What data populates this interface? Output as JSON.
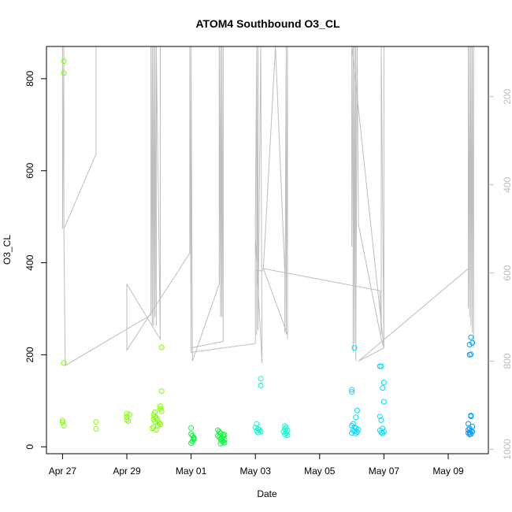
{
  "chart_data": {
    "type": "scatter",
    "title": "ATOM4 Southbound O3_CL",
    "xlabel": "Date",
    "ylabel": "O3_CL",
    "xlim": [
      "2018-04-26T12:00",
      "2018-05-10T06:00"
    ],
    "ylim": [
      -15,
      870
    ],
    "x_ticks": [
      {
        "date": "2018-04-27",
        "label": "Apr 27"
      },
      {
        "date": "2018-04-29",
        "label": "Apr 29"
      },
      {
        "date": "2018-05-01",
        "label": "May 01"
      },
      {
        "date": "2018-05-03",
        "label": "May 03"
      },
      {
        "date": "2018-05-05",
        "label": "May 05"
      },
      {
        "date": "2018-05-07",
        "label": "May 07"
      },
      {
        "date": "2018-05-09",
        "label": "May 09"
      }
    ],
    "y_ticks": [
      0,
      200,
      400,
      600,
      800
    ],
    "y2_ticks": [
      200,
      400,
      600,
      800,
      1000
    ],
    "y2_range": [
      86,
      1010
    ],
    "y2_reversed": true,
    "grid": false,
    "colors": {
      "points": [
        "#7fff00",
        "#00ff33",
        "#00ffcc",
        "#00ddff",
        "#0099ff"
      ],
      "profile_line": "#bebebe",
      "axis": "#000000",
      "secondary_axis": "#bdbdbd"
    },
    "series": [
      {
        "color": "#7fff00",
        "points": [
          [
            "2018-04-27T01:00",
            838
          ],
          [
            "2018-04-27T01:00",
            812
          ],
          [
            "2018-04-27T01:00",
            182
          ],
          [
            "2018-04-27T00:00",
            57
          ],
          [
            "2018-04-27T00:00",
            53
          ],
          [
            "2018-04-27T01:00",
            46
          ],
          [
            "2018-04-28T01:00",
            54
          ],
          [
            "2018-04-28T01:00",
            39
          ],
          [
            "2018-04-29T00:00",
            72
          ],
          [
            "2018-04-29T00:00",
            65
          ],
          [
            "2018-04-29T00:00",
            59
          ],
          [
            "2018-04-29T01:00",
            56
          ],
          [
            "2018-04-29T02:00",
            70
          ],
          [
            "2018-04-30T02:00",
            216
          ],
          [
            "2018-04-30T02:00",
            121
          ],
          [
            "2018-04-30T01:00",
            88
          ],
          [
            "2018-04-30T01:00",
            82
          ],
          [
            "2018-04-30T02:00",
            77
          ],
          [
            "2018-04-29T21:00",
            75
          ],
          [
            "2018-04-29T20:00",
            70
          ],
          [
            "2018-04-29T21:00",
            66
          ],
          [
            "2018-04-29T22:00",
            63
          ],
          [
            "2018-04-29T20:00",
            60
          ],
          [
            "2018-04-29T23:00",
            58
          ],
          [
            "2018-04-29T21:00",
            55
          ],
          [
            "2018-04-30T00:00",
            52
          ],
          [
            "2018-04-30T01:00",
            49
          ],
          [
            "2018-04-29T23:00",
            46
          ],
          [
            "2018-04-29T20:00",
            43
          ],
          [
            "2018-04-29T19:00",
            40
          ],
          [
            "2018-04-29T22:00",
            37
          ]
        ]
      },
      {
        "color": "#00ff33",
        "points": [
          [
            "2018-05-01T00:00",
            41
          ],
          [
            "2018-05-01T00:00",
            28
          ],
          [
            "2018-05-01T01:00",
            24
          ],
          [
            "2018-05-01T02:00",
            20
          ],
          [
            "2018-05-01T02:00",
            16
          ],
          [
            "2018-05-01T01:00",
            12
          ],
          [
            "2018-05-01T00:00",
            8
          ],
          [
            "2018-05-01T02:00",
            18
          ],
          [
            "2018-05-01T20:00",
            36
          ],
          [
            "2018-05-01T21:00",
            33
          ],
          [
            "2018-05-01T22:00",
            30
          ],
          [
            "2018-05-02T00:00",
            27
          ],
          [
            "2018-05-01T20:00",
            24
          ],
          [
            "2018-05-01T21:00",
            21
          ],
          [
            "2018-05-01T23:00",
            19
          ],
          [
            "2018-05-01T22:00",
            17
          ],
          [
            "2018-05-02T01:00",
            15
          ],
          [
            "2018-05-01T23:00",
            13
          ],
          [
            "2018-05-02T00:00",
            11
          ],
          [
            "2018-05-02T01:00",
            9
          ],
          [
            "2018-05-01T22:00",
            7
          ],
          [
            "2018-05-02T00:00",
            23
          ],
          [
            "2018-05-02T01:00",
            26
          ]
        ]
      },
      {
        "color": "#00ffcc",
        "points": [
          [
            "2018-05-03T04:00",
            148
          ],
          [
            "2018-05-03T04:00",
            133
          ],
          [
            "2018-05-03T01:00",
            50
          ],
          [
            "2018-05-03T00:00",
            42
          ],
          [
            "2018-05-03T02:00",
            39
          ],
          [
            "2018-05-03T03:00",
            37
          ],
          [
            "2018-05-03T01:00",
            35
          ],
          [
            "2018-05-03T04:00",
            33
          ],
          [
            "2018-05-03T02:00",
            31
          ],
          [
            "2018-05-03T22:00",
            45
          ],
          [
            "2018-05-03T23:00",
            42
          ],
          [
            "2018-05-03T22:00",
            39
          ],
          [
            "2018-05-04T00:00",
            36
          ],
          [
            "2018-05-03T21:00",
            33
          ],
          [
            "2018-05-03T23:00",
            30
          ],
          [
            "2018-05-03T22:00",
            27
          ],
          [
            "2018-05-04T00:00",
            25
          ]
        ]
      },
      {
        "color": "#00ddff",
        "points": [
          [
            "2018-05-06T02:00",
            215
          ],
          [
            "2018-05-06T00:00",
            124
          ],
          [
            "2018-05-06T00:00",
            119
          ],
          [
            "2018-05-06T04:00",
            79
          ],
          [
            "2018-05-06T03:00",
            64
          ],
          [
            "2018-05-06T01:00",
            50
          ],
          [
            "2018-05-06T00:00",
            46
          ],
          [
            "2018-05-06T02:00",
            43
          ],
          [
            "2018-05-06T03:00",
            40
          ],
          [
            "2018-05-06T05:00",
            38
          ],
          [
            "2018-05-06T01:00",
            36
          ],
          [
            "2018-05-06T02:00",
            34
          ],
          [
            "2018-05-06T04:00",
            32
          ],
          [
            "2018-05-06T00:00",
            30
          ],
          [
            "2018-05-06T03:00",
            29
          ],
          [
            "2018-05-06T21:00",
            175
          ],
          [
            "2018-05-06T22:00",
            175
          ],
          [
            "2018-05-07T00:00",
            140
          ],
          [
            "2018-05-06T23:00",
            128
          ],
          [
            "2018-05-07T00:00",
            98
          ],
          [
            "2018-05-06T21:00",
            66
          ],
          [
            "2018-05-06T22:00",
            58
          ],
          [
            "2018-05-06T23:00",
            40
          ],
          [
            "2018-05-06T21:00",
            36
          ],
          [
            "2018-05-07T00:00",
            33
          ],
          [
            "2018-05-06T22:00",
            31
          ],
          [
            "2018-05-06T23:00",
            29
          ]
        ]
      },
      {
        "color": "#0099ff",
        "points": [
          [
            "2018-05-09T17:00",
            238
          ],
          [
            "2018-05-09T16:00",
            222
          ],
          [
            "2018-05-09T18:00",
            226
          ],
          [
            "2018-05-09T16:00",
            200
          ],
          [
            "2018-05-09T17:00",
            201
          ],
          [
            "2018-05-09T17:00",
            68
          ],
          [
            "2018-05-09T17:00",
            66
          ],
          [
            "2018-05-09T15:00",
            50
          ],
          [
            "2018-05-09T18:00",
            44
          ],
          [
            "2018-05-09T16:00",
            40
          ],
          [
            "2018-05-09T15:00",
            37
          ],
          [
            "2018-05-09T17:00",
            35
          ],
          [
            "2018-05-09T18:00",
            33
          ],
          [
            "2018-05-09T16:00",
            31
          ],
          [
            "2018-05-09T15:00",
            30
          ],
          [
            "2018-05-09T17:00",
            28
          ],
          [
            "2018-05-09T16:00",
            27
          ]
        ]
      }
    ],
    "profile_line": {
      "color": "#bebebe",
      "axis": "right",
      "points": [
        [
          "2018-04-27T00:00",
          86
        ],
        [
          "2018-04-27T00:00",
          500
        ],
        [
          "2018-04-27T01:00",
          86
        ],
        [
          "2018-04-27T01:00",
          500
        ],
        [
          "2018-04-28T01:00",
          330
        ],
        [
          "2018-04-28T01:00",
          86
        ],
        [
          "2018-04-28T01:00",
          330
        ],
        [
          "2018-04-27T01:00",
          500
        ],
        [
          "2018-04-27T02:00",
          810
        ],
        [
          "2018-04-29T18:00",
          695
        ],
        [
          "2018-04-29T18:00",
          86
        ],
        [
          "2018-04-29T19:00",
          720
        ],
        [
          "2018-04-29T19:00",
          86
        ],
        [
          "2018-04-29T20:00",
          720
        ],
        [
          "2018-04-29T20:00",
          86
        ],
        [
          "2018-04-29T21:00",
          700
        ],
        [
          "2018-04-29T21:00",
          86
        ],
        [
          "2018-04-29T22:00",
          720
        ],
        [
          "2018-04-29T22:00",
          86
        ],
        [
          "2018-04-30T01:00",
          750
        ],
        [
          "2018-04-30T01:00",
          86
        ],
        [
          "2018-04-30T01:00",
          750
        ],
        [
          "2018-04-29T00:00",
          625
        ],
        [
          "2018-04-29T00:00",
          775
        ],
        [
          "2018-04-30T23:00",
          555
        ],
        [
          "2018-04-30T23:00",
          86
        ],
        [
          "2018-05-01T00:00",
          770
        ],
        [
          "2018-05-01T00:00",
          86
        ],
        [
          "2018-05-01T01:00",
          800
        ],
        [
          "2018-05-01T01:00",
          800
        ],
        [
          "2018-05-01T21:00",
          625
        ],
        [
          "2018-05-01T21:00",
          86
        ],
        [
          "2018-05-01T22:00",
          700
        ],
        [
          "2018-05-01T22:00",
          86
        ],
        [
          "2018-05-01T23:00",
          700
        ],
        [
          "2018-05-01T23:00",
          86
        ],
        [
          "2018-05-02T00:00",
          755
        ],
        [
          "2018-05-02T00:00",
          86
        ],
        [
          "2018-05-02T00:00",
          755
        ],
        [
          "2018-05-01T00:00",
          770
        ],
        [
          "2018-05-01T00:00",
          780
        ],
        [
          "2018-05-03T00:00",
          760
        ],
        [
          "2018-05-03T00:00",
          480
        ],
        [
          "2018-05-03T01:00",
          86
        ],
        [
          "2018-05-03T01:00",
          740
        ],
        [
          "2018-05-03T02:00",
          86
        ],
        [
          "2018-05-03T02:00",
          730
        ],
        [
          "2018-05-03T04:00",
          86
        ],
        [
          "2018-05-03T05:00",
          805
        ],
        [
          "2018-05-03T05:00",
          805
        ],
        [
          "2018-05-03T00:00",
          520
        ],
        [
          "2018-05-03T00:00",
          595
        ],
        [
          "2018-05-03T05:00",
          595
        ],
        [
          "2018-05-03T06:00",
          590
        ],
        [
          "2018-05-03T15:00",
          86
        ],
        [
          "2018-05-03T22:00",
          600
        ],
        [
          "2018-05-03T22:00",
          735
        ],
        [
          "2018-05-03T23:00",
          86
        ],
        [
          "2018-05-03T23:00",
          740
        ],
        [
          "2018-05-04T00:00",
          86
        ],
        [
          "2018-05-04T00:00",
          750
        ],
        [
          "2018-05-04T00:00",
          740
        ],
        [
          "2018-05-03T06:00",
          590
        ],
        [
          "2018-05-06T21:00",
          640
        ],
        [
          "2018-05-06T22:00",
          740
        ],
        [
          "2018-05-06T22:00",
          86
        ],
        [
          "2018-05-07T00:00",
          770
        ],
        [
          "2018-05-07T00:00",
          86
        ],
        [
          "2018-05-07T00:00",
          770
        ],
        [
          "2018-05-06T00:00",
          86
        ],
        [
          "2018-05-06T00:00",
          540
        ],
        [
          "2018-05-06T01:00",
          86
        ],
        [
          "2018-05-06T01:00",
          780
        ],
        [
          "2018-05-06T02:00",
          86
        ],
        [
          "2018-05-06T02:00",
          760
        ],
        [
          "2018-05-06T03:00",
          86
        ],
        [
          "2018-05-06T03:00",
          800
        ],
        [
          "2018-05-06T04:00",
          86
        ],
        [
          "2018-05-06T05:00",
          490
        ],
        [
          "2018-05-06T22:00",
          750
        ],
        [
          "2018-05-07T00:00",
          770
        ],
        [
          "2018-05-06T05:00",
          800
        ],
        [
          "2018-05-09T15:00",
          590
        ],
        [
          "2018-05-09T15:00",
          86
        ],
        [
          "2018-05-09T15:00",
          680
        ],
        [
          "2018-05-09T16:00",
          86
        ],
        [
          "2018-05-09T16:00",
          700
        ],
        [
          "2018-05-09T17:00",
          86
        ],
        [
          "2018-05-09T17:00",
          720
        ],
        [
          "2018-05-09T18:00",
          86
        ],
        [
          "2018-05-09T18:00",
          735
        ],
        [
          "2018-05-09T19:00",
          86
        ],
        [
          "2018-05-09T19:00",
          770
        ]
      ]
    }
  }
}
